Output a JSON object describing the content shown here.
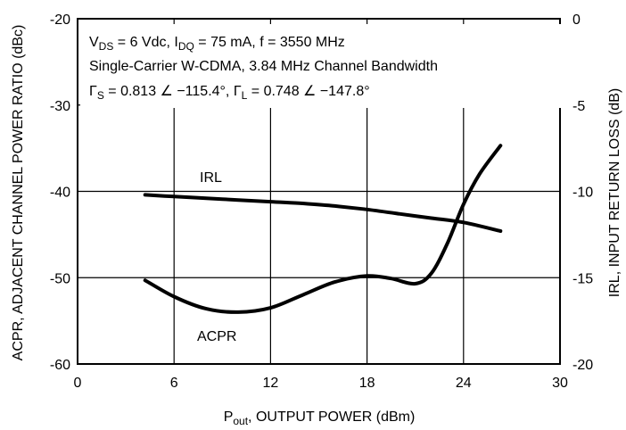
{
  "chart_data": {
    "type": "line",
    "xlabel": {
      "main": "P",
      "sub": "out",
      "rest": ", OUTPUT POWER (dBm)"
    },
    "ylabel_left": "ACPR, ADJACENT CHANNEL POWER RATIO (dBc)",
    "ylabel_right": "IRL,  INPUT RETURN LOSS (dB)",
    "xlim": [
      0,
      30
    ],
    "ylim_left": [
      -60,
      -20
    ],
    "ylim_right": [
      -20,
      0
    ],
    "x_ticks": [
      "0",
      "6",
      "12",
      "18",
      "24",
      "30"
    ],
    "y_left_ticks": [
      "-60",
      "-50",
      "-40",
      "-30",
      "-20"
    ],
    "y_right_ticks": [
      "-20",
      "-15",
      "-10",
      "-5",
      "0"
    ],
    "annotations": {
      "line1": {
        "p1": "V",
        "s1": "DS",
        "p2": " = 6 Vdc, I",
        "s2": "DQ",
        "p3": " = 75 mA, f = 3550 MHz"
      },
      "line2": "Single-Carrier W-CDMA, 3.84 MHz Channel Bandwidth",
      "line3": {
        "g1": "Γ",
        "s1": "S",
        "p1": " = 0.813 ∠ −115.4°, ",
        "g2": "Γ",
        "s2": "L",
        "p2": " = 0.748 ∠ −147.8°"
      }
    },
    "series": [
      {
        "name": "ACPR",
        "axis": "left",
        "x": [
          4.2,
          6,
          8,
          10,
          12,
          14,
          16,
          18,
          19.5,
          21,
          22,
          23,
          24,
          25,
          26.3
        ],
        "y": [
          -50.3,
          -52.2,
          -53.6,
          -54.0,
          -53.5,
          -52.0,
          -50.5,
          -49.8,
          -50.1,
          -50.7,
          -49.5,
          -46.0,
          -41.5,
          -38.0,
          -34.7
        ]
      },
      {
        "name": "IRL",
        "axis": "right",
        "x": [
          4.2,
          6,
          8,
          10,
          12,
          14,
          16,
          18,
          20,
          22,
          24,
          26.3
        ],
        "y": [
          -10.2,
          -10.3,
          -10.4,
          -10.5,
          -10.6,
          -10.7,
          -10.85,
          -11.05,
          -11.3,
          -11.55,
          -11.8,
          -12.3
        ]
      }
    ]
  }
}
